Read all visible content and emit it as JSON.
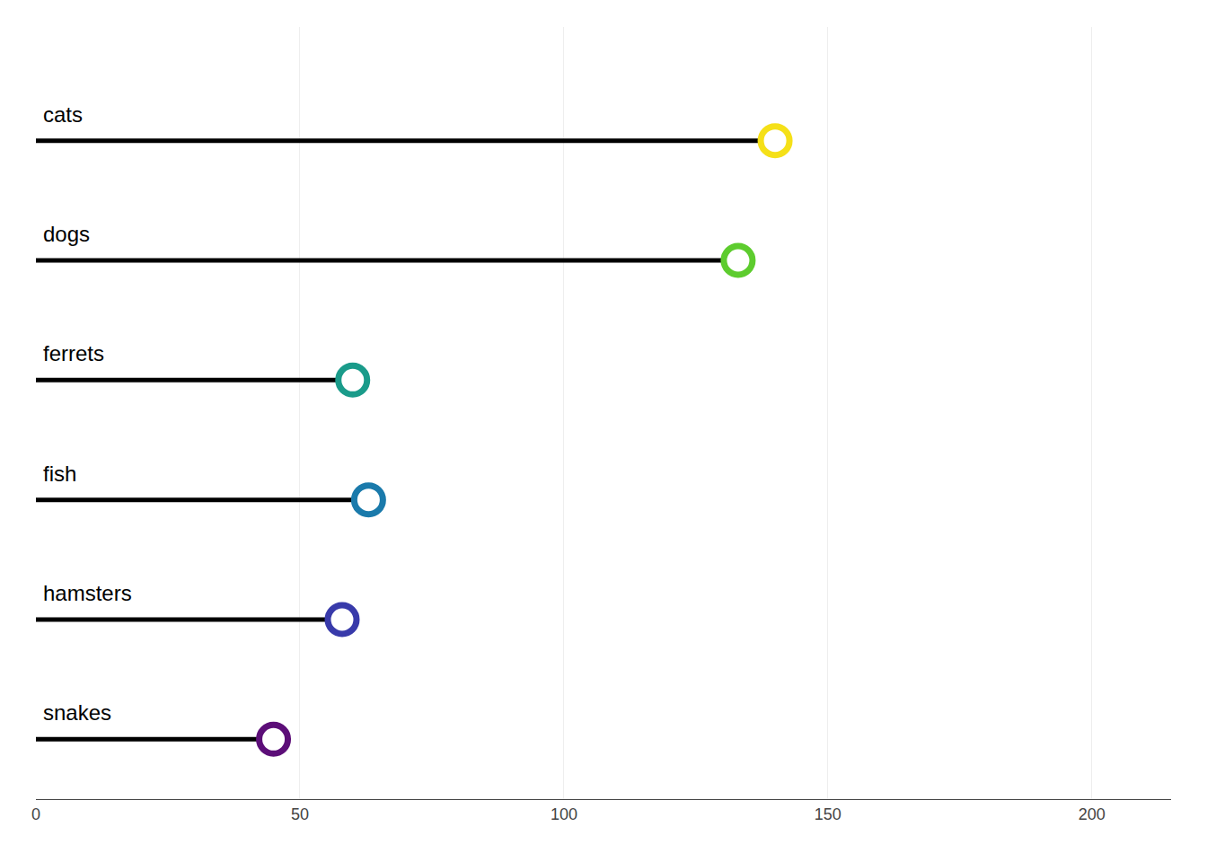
{
  "chart_data": {
    "type": "lollipop",
    "orientation": "horizontal",
    "categories": [
      "cats",
      "dogs",
      "ferrets",
      "fish",
      "hamsters",
      "snakes"
    ],
    "values": [
      140,
      133,
      60,
      63,
      58,
      45
    ],
    "colors": [
      "#f5e018",
      "#5dcc2e",
      "#1a9b8a",
      "#1a7aab",
      "#383aaa",
      "#5c0e78"
    ],
    "color": "black",
    "xlim": [
      0,
      215
    ],
    "xticks": [
      0,
      50,
      100,
      150,
      200
    ],
    "grid": true,
    "tick_labels": "x"
  }
}
